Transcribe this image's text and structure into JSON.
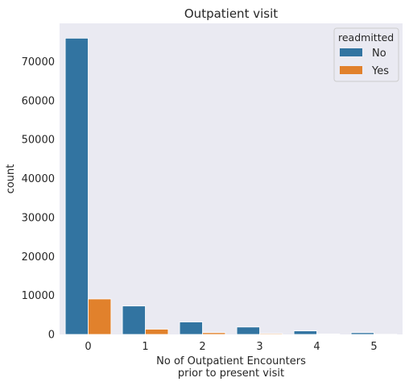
{
  "chart_data": {
    "type": "bar",
    "title": "Outpatient visit",
    "xlabel_lines": [
      "No of Outpatient Encounters",
      "prior to present visit"
    ],
    "ylabel": "count",
    "categories": [
      "0",
      "1",
      "2",
      "3",
      "4",
      "5"
    ],
    "series": [
      {
        "name": "No",
        "color": "#3274a1",
        "values": [
          76000,
          7300,
          3200,
          1900,
          900,
          450
        ]
      },
      {
        "name": "Yes",
        "color": "#e1812c",
        "values": [
          9100,
          1350,
          450,
          220,
          130,
          50
        ]
      }
    ],
    "ylim": [
      0,
      79800
    ],
    "yticks": [
      0,
      10000,
      20000,
      30000,
      40000,
      50000,
      60000,
      70000
    ],
    "grid": false,
    "background": "#eaeaf2",
    "legend": {
      "title": "readmitted",
      "placement": "top-right",
      "labels": [
        "No",
        "Yes"
      ]
    }
  }
}
